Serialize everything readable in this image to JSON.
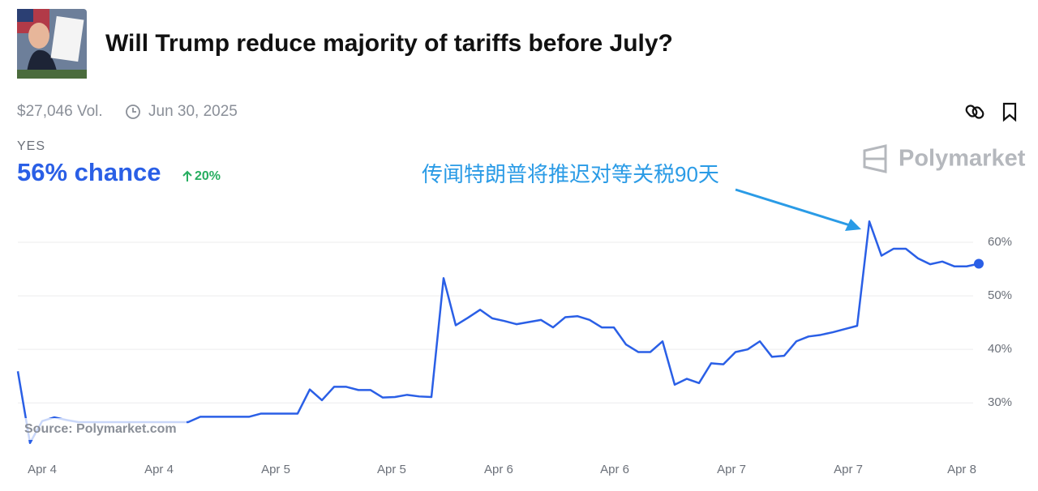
{
  "header": {
    "title": "Will Trump reduce majority of tariffs before July?",
    "volume": "$27,046 Vol.",
    "end_date": "Jun 30, 2025",
    "outcome": "YES",
    "headline": "56% chance",
    "change": "20%",
    "brand": "Polymarket"
  },
  "chart_data": {
    "type": "line",
    "annotation": "传闻特朗普将推迟对等关税90天",
    "source": "Source: Polymarket.com",
    "series": [
      {
        "name": "YES",
        "color": "#2a5fe6",
        "values": [
          35.9,
          22.5,
          26.6,
          27.3,
          26.8,
          26.4,
          26.4,
          26.4,
          26.4,
          26.4,
          26.4,
          26.4,
          26.4,
          26.4,
          26.4,
          27.4,
          27.4,
          27.4,
          27.4,
          27.4,
          28,
          28,
          28,
          28,
          32.5,
          30.5,
          33,
          33,
          32.4,
          32.4,
          31,
          31.1,
          31.5,
          31.2,
          31.1,
          53.3,
          44.5,
          45.9,
          47.4,
          45.8,
          45.3,
          44.7,
          45.1,
          45.5,
          44.1,
          46,
          46.2,
          45.5,
          44.1,
          44.1,
          40.9,
          39.5,
          39.5,
          41.5,
          33.4,
          34.5,
          33.7,
          37.4,
          37.2,
          39.5,
          40,
          41.5,
          38.6,
          38.8,
          41.5,
          42.4,
          42.7,
          43.2,
          43.8,
          44.4,
          63.9,
          57.5,
          58.8,
          58.8,
          57,
          55.9,
          56.4,
          55.5,
          55.5,
          56
        ]
      }
    ],
    "xlim": [
      0,
      79
    ],
    "xticks": [
      {
        "value": 2,
        "label": "Apr 4"
      },
      {
        "value": 11.6,
        "label": "Apr 4"
      },
      {
        "value": 21.2,
        "label": "Apr 5"
      },
      {
        "value": 30.73,
        "label": "Apr 5"
      },
      {
        "value": 39.53,
        "label": "Apr 6"
      },
      {
        "value": 49.07,
        "label": "Apr 6"
      },
      {
        "value": 58.67,
        "label": "Apr 7"
      },
      {
        "value": 68.27,
        "label": "Apr 7"
      },
      {
        "value": 77.6,
        "label": "Apr 8"
      }
    ],
    "ylim": [
      20.5,
      64.7
    ],
    "yticks": [
      {
        "value": 30,
        "label": "30%"
      },
      {
        "value": 40,
        "label": "40%"
      },
      {
        "value": 50,
        "label": "50%"
      },
      {
        "value": 60,
        "label": "60%"
      }
    ],
    "grid": true
  }
}
